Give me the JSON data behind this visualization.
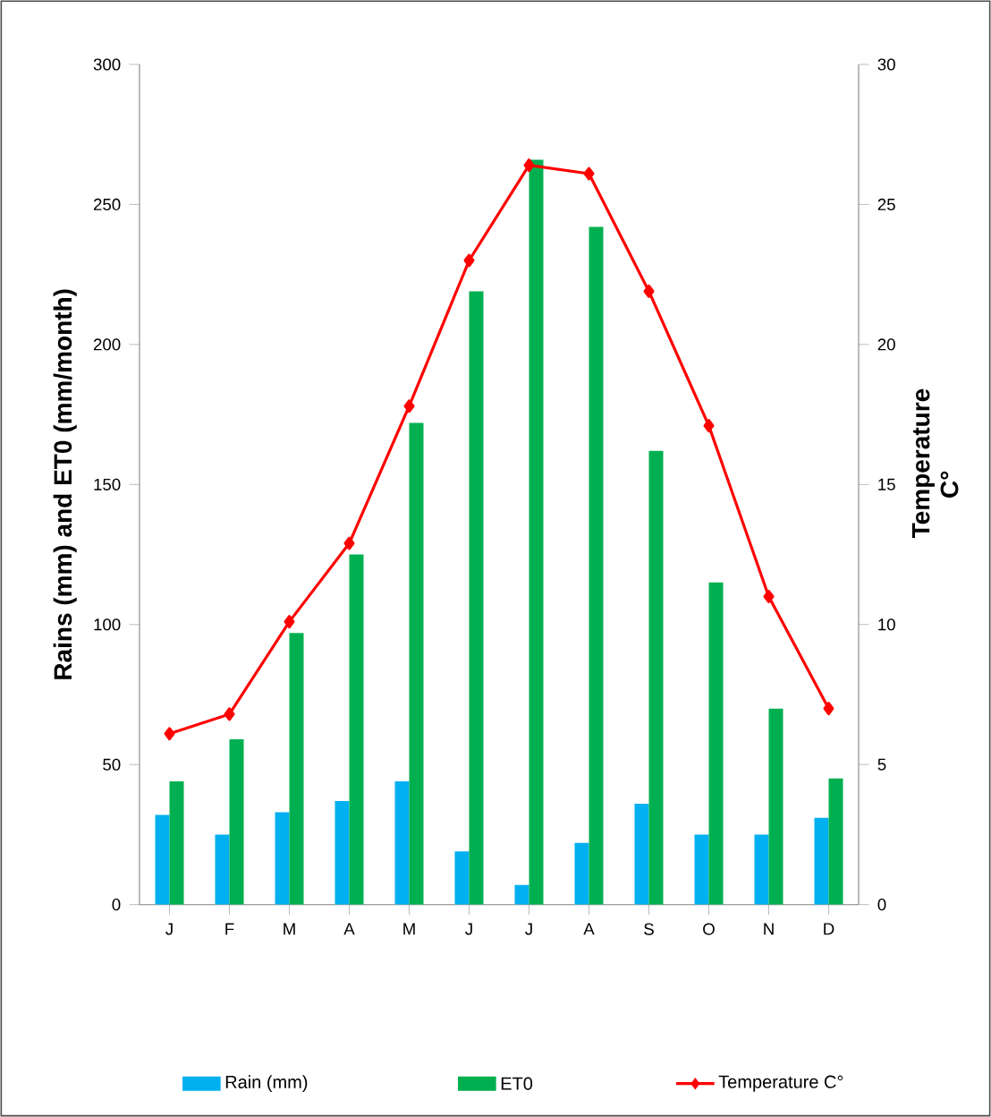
{
  "chart_data": {
    "type": "bar",
    "categories": [
      "J",
      "F",
      "M",
      "A",
      "M",
      "J",
      "J",
      "A",
      "S",
      "O",
      "N",
      "D"
    ],
    "series": [
      {
        "name": "Rain  (mm)",
        "color": "#00b0f0",
        "values": [
          32,
          25,
          33,
          37,
          44,
          19,
          7,
          22,
          36,
          25,
          25,
          31
        ]
      },
      {
        "name": "ET0",
        "color": "#00b050",
        "values": [
          44,
          59,
          97,
          125,
          172,
          219,
          266,
          242,
          162,
          115,
          70,
          45
        ]
      },
      {
        "name": "Temperature C°",
        "type": "line",
        "axis": "y2",
        "color": "#ff0000",
        "values": [
          6.1,
          6.8,
          10.1,
          12.9,
          17.8,
          23.0,
          26.4,
          26.1,
          21.9,
          17.1,
          11.0,
          7.0
        ]
      }
    ],
    "ylabel": "Rains (mm) and ET0 (mm/month)",
    "y2label": "Temperature C°",
    "ylim": [
      0,
      300
    ],
    "yticks": [
      0,
      50,
      100,
      150,
      200,
      250,
      300
    ],
    "y2lim": [
      0,
      30
    ],
    "y2ticks": [
      0,
      5,
      10,
      15,
      20,
      25,
      30
    ],
    "marker": "diamond",
    "legend": "bottom"
  }
}
